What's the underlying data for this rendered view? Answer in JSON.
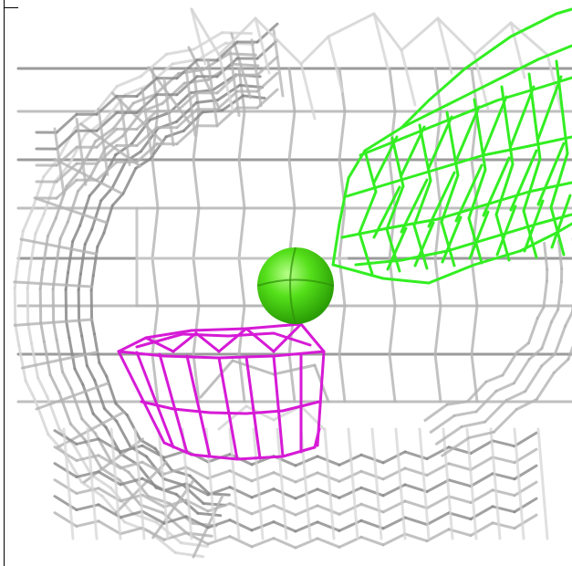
{
  "scene": {
    "background_color": "#ffffff",
    "colors": {
      "grey_mesh_dark": "#8a8a8a",
      "grey_mesh_mid": "#b4b4b4",
      "grey_mesh_light": "#d6d6d6",
      "green_mesh": "#33ee22",
      "magenta_mesh": "#d61ad6",
      "green_sphere": "#44dd11",
      "frame": "#000000"
    },
    "objects": [
      {
        "name": "grey-wireframe-surface",
        "icon": "wireframe-mesh",
        "color_key": "grey_mesh_mid"
      },
      {
        "name": "green-wireframe-surface",
        "icon": "wireframe-mesh",
        "color_key": "green_mesh"
      },
      {
        "name": "magenta-wireframe-surface",
        "icon": "wireframe-mesh",
        "color_key": "magenta_mesh"
      },
      {
        "name": "green-atom-sphere",
        "icon": "sphere",
        "color_key": "green_sphere"
      }
    ]
  }
}
